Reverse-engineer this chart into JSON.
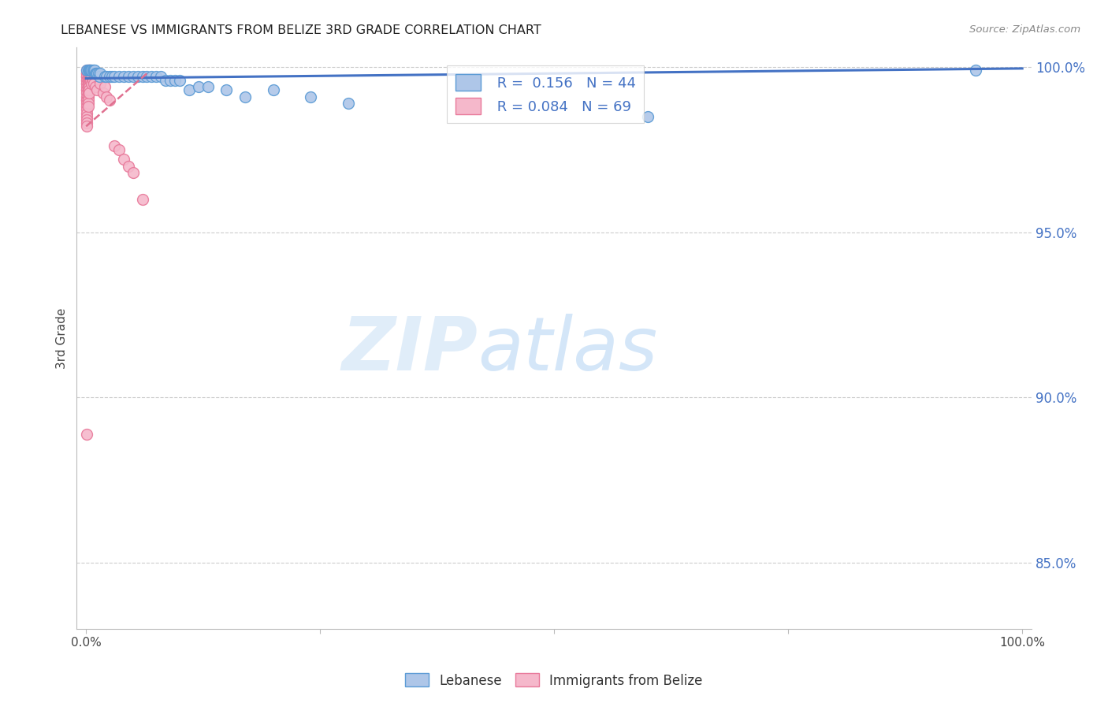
{
  "title": "LEBANESE VS IMMIGRANTS FROM BELIZE 3RD GRADE CORRELATION CHART",
  "source": "Source: ZipAtlas.com",
  "ylabel": "3rd Grade",
  "watermark_zip": "ZIP",
  "watermark_atlas": "atlas",
  "blue_color": "#aec6e8",
  "pink_color": "#f5b8cb",
  "blue_edge_color": "#5b9bd5",
  "pink_edge_color": "#e8799a",
  "blue_line_color": "#4472c4",
  "pink_line_color": "#e07090",
  "ytick_color": "#4472c4",
  "blue_scatter": [
    [
      0.001,
      0.999
    ],
    [
      0.002,
      0.999
    ],
    [
      0.003,
      0.999
    ],
    [
      0.004,
      0.999
    ],
    [
      0.005,
      0.999
    ],
    [
      0.006,
      0.999
    ],
    [
      0.007,
      0.999
    ],
    [
      0.008,
      0.999
    ],
    [
      0.009,
      0.999
    ],
    [
      0.01,
      0.998
    ],
    [
      0.011,
      0.998
    ],
    [
      0.012,
      0.998
    ],
    [
      0.013,
      0.998
    ],
    [
      0.014,
      0.997
    ],
    [
      0.015,
      0.998
    ],
    [
      0.02,
      0.997
    ],
    [
      0.022,
      0.997
    ],
    [
      0.025,
      0.997
    ],
    [
      0.028,
      0.997
    ],
    [
      0.03,
      0.997
    ],
    [
      0.035,
      0.997
    ],
    [
      0.04,
      0.997
    ],
    [
      0.045,
      0.997
    ],
    [
      0.05,
      0.997
    ],
    [
      0.055,
      0.997
    ],
    [
      0.06,
      0.997
    ],
    [
      0.065,
      0.997
    ],
    [
      0.07,
      0.997
    ],
    [
      0.075,
      0.997
    ],
    [
      0.08,
      0.997
    ],
    [
      0.085,
      0.996
    ],
    [
      0.09,
      0.996
    ],
    [
      0.095,
      0.996
    ],
    [
      0.1,
      0.996
    ],
    [
      0.11,
      0.993
    ],
    [
      0.12,
      0.994
    ],
    [
      0.13,
      0.994
    ],
    [
      0.15,
      0.993
    ],
    [
      0.17,
      0.991
    ],
    [
      0.2,
      0.993
    ],
    [
      0.24,
      0.991
    ],
    [
      0.28,
      0.989
    ],
    [
      0.6,
      0.985
    ],
    [
      0.95,
      0.999
    ]
  ],
  "pink_scatter": [
    [
      0.001,
      0.999
    ],
    [
      0.001,
      0.998
    ],
    [
      0.001,
      0.998
    ],
    [
      0.001,
      0.997
    ],
    [
      0.001,
      0.997
    ],
    [
      0.001,
      0.996
    ],
    [
      0.001,
      0.996
    ],
    [
      0.001,
      0.995
    ],
    [
      0.001,
      0.995
    ],
    [
      0.001,
      0.994
    ],
    [
      0.001,
      0.993
    ],
    [
      0.001,
      0.993
    ],
    [
      0.001,
      0.992
    ],
    [
      0.001,
      0.991
    ],
    [
      0.001,
      0.99
    ],
    [
      0.001,
      0.99
    ],
    [
      0.001,
      0.989
    ],
    [
      0.001,
      0.988
    ],
    [
      0.001,
      0.987
    ],
    [
      0.001,
      0.986
    ],
    [
      0.001,
      0.985
    ],
    [
      0.001,
      0.984
    ],
    [
      0.001,
      0.983
    ],
    [
      0.001,
      0.982
    ],
    [
      0.002,
      0.999
    ],
    [
      0.002,
      0.998
    ],
    [
      0.002,
      0.997
    ],
    [
      0.002,
      0.996
    ],
    [
      0.002,
      0.995
    ],
    [
      0.002,
      0.994
    ],
    [
      0.002,
      0.993
    ],
    [
      0.002,
      0.992
    ],
    [
      0.002,
      0.991
    ],
    [
      0.002,
      0.99
    ],
    [
      0.002,
      0.989
    ],
    [
      0.002,
      0.988
    ],
    [
      0.003,
      0.999
    ],
    [
      0.003,
      0.998
    ],
    [
      0.003,
      0.997
    ],
    [
      0.003,
      0.996
    ],
    [
      0.003,
      0.995
    ],
    [
      0.003,
      0.994
    ],
    [
      0.003,
      0.993
    ],
    [
      0.003,
      0.992
    ],
    [
      0.004,
      0.999
    ],
    [
      0.004,
      0.998
    ],
    [
      0.004,
      0.997
    ],
    [
      0.004,
      0.996
    ],
    [
      0.005,
      0.998
    ],
    [
      0.005,
      0.997
    ],
    [
      0.005,
      0.996
    ],
    [
      0.006,
      0.997
    ],
    [
      0.006,
      0.995
    ],
    [
      0.007,
      0.996
    ],
    [
      0.008,
      0.995
    ],
    [
      0.01,
      0.994
    ],
    [
      0.012,
      0.993
    ],
    [
      0.015,
      0.995
    ],
    [
      0.018,
      0.992
    ],
    [
      0.02,
      0.994
    ],
    [
      0.022,
      0.991
    ],
    [
      0.025,
      0.99
    ],
    [
      0.03,
      0.976
    ],
    [
      0.035,
      0.975
    ],
    [
      0.04,
      0.972
    ],
    [
      0.045,
      0.97
    ],
    [
      0.05,
      0.968
    ],
    [
      0.06,
      0.96
    ],
    [
      0.001,
      0.889
    ]
  ],
  "blue_trend_x": [
    0.0,
    1.0
  ],
  "blue_trend_y": [
    0.9965,
    0.9995
  ],
  "pink_trend_x": [
    0.0,
    0.065
  ],
  "pink_trend_y": [
    0.982,
    0.998
  ],
  "xlim": [
    -0.01,
    1.01
  ],
  "ylim": [
    0.83,
    1.006
  ],
  "yticks": [
    0.85,
    0.9,
    0.95,
    1.0
  ],
  "ytick_labels": [
    "85.0%",
    "90.0%",
    "95.0%",
    "100.0%"
  ],
  "xticks": [
    0.0,
    0.25,
    0.5,
    0.75,
    1.0
  ],
  "xtick_labels": [
    "0.0%",
    "",
    "",
    "",
    "100.0%"
  ],
  "marker_size": 100
}
